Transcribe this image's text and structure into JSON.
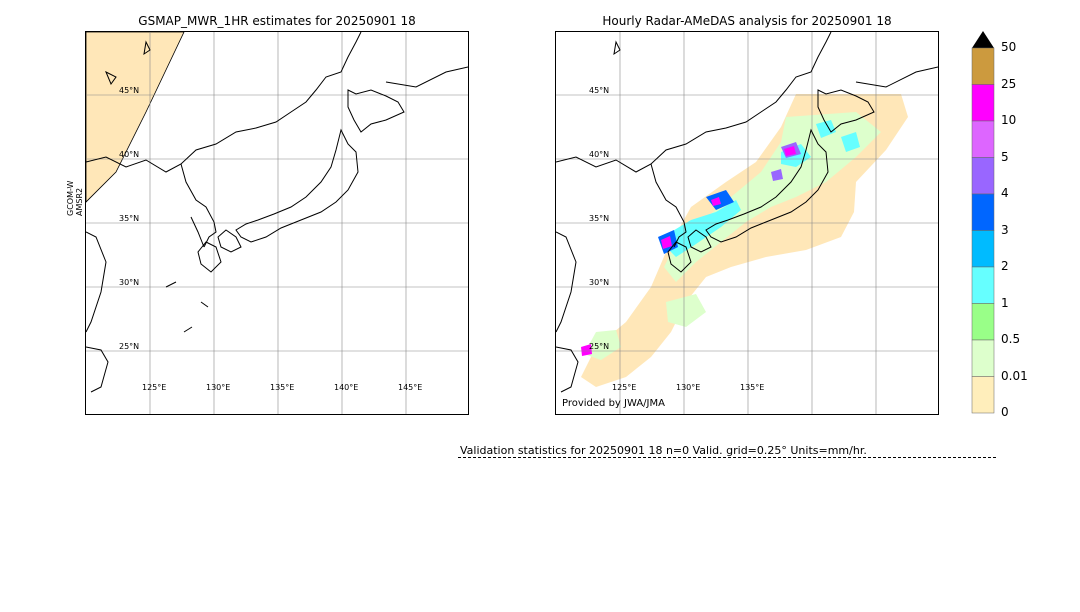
{
  "left_panel": {
    "title": "GSMAP_MWR_1HR estimates for 20250901 18",
    "ylabel_line1": "GCOM-W",
    "ylabel_line2": "AMSR2",
    "lat_labels": [
      "45°N",
      "40°N",
      "35°N",
      "30°N",
      "25°N"
    ],
    "lon_labels": [
      "125°E",
      "130°E",
      "135°E",
      "140°E",
      "145°E"
    ]
  },
  "right_panel": {
    "title": "Hourly Radar-AMeDAS analysis for 20250901 18",
    "credit": "Provided by JWA/JMA",
    "lat_labels": [
      "45°N",
      "40°N",
      "35°N",
      "30°N",
      "25°N"
    ],
    "lon_labels": [
      "125°E",
      "130°E",
      "135°E"
    ]
  },
  "colorbar": {
    "labels": [
      "50",
      "25",
      "10",
      "5",
      "4",
      "3",
      "2",
      "1",
      "0.5",
      "0.01",
      "0"
    ],
    "colors": [
      "#cc9a3e",
      "#ff00ff",
      "#dd66ff",
      "#9966ff",
      "#0066ff",
      "#00bbff",
      "#66ffff",
      "#99ff88",
      "#ddffcc",
      "#ffeebb"
    ],
    "extend_color": "#000000"
  },
  "footer": {
    "stats": "Validation statistics for 20250901 18  n=0 Valid. grid=0.25° Units=mm/hr."
  }
}
